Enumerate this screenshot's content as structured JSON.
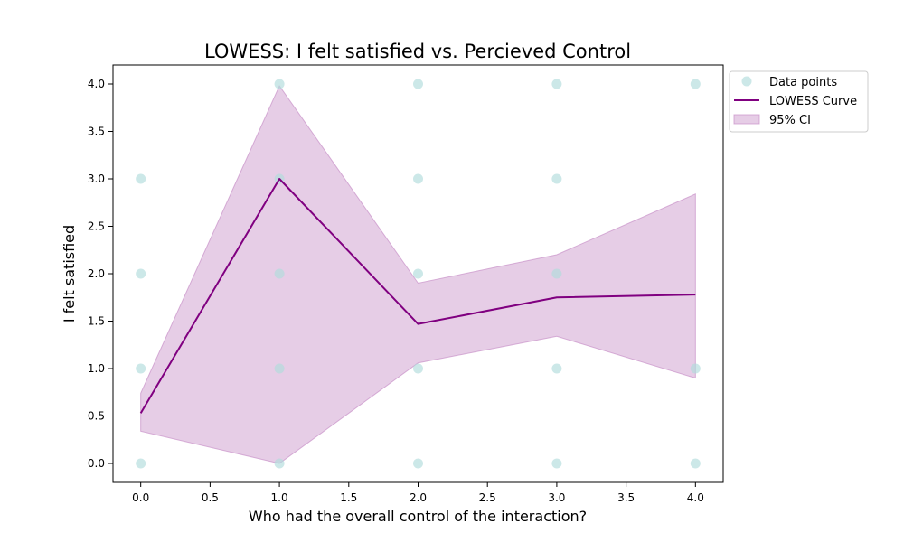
{
  "chart_data": {
    "type": "scatter",
    "title": "LOWESS: I felt satisfied vs. Percieved Control",
    "xlabel": "Who had the overall control of the interaction?",
    "ylabel": "I felt satisfied",
    "xlim": [
      -0.2,
      4.2
    ],
    "ylim": [
      -0.2,
      4.2
    ],
    "xticks": [
      0.0,
      0.5,
      1.0,
      1.5,
      2.0,
      2.5,
      3.0,
      3.5,
      4.0
    ],
    "yticks": [
      0.0,
      0.5,
      1.0,
      1.5,
      2.0,
      2.5,
      3.0,
      3.5,
      4.0
    ],
    "xtick_labels": [
      "0.0",
      "0.5",
      "1.0",
      "1.5",
      "2.0",
      "2.5",
      "3.0",
      "3.5",
      "4.0"
    ],
    "ytick_labels": [
      "0.0",
      "0.5",
      "1.0",
      "1.5",
      "2.0",
      "2.5",
      "3.0",
      "3.5",
      "4.0"
    ],
    "grid": false,
    "legend_position": "outside top-right",
    "legend": [
      "Data points",
      "LOWESS Curve",
      "95% CI"
    ],
    "series": [
      {
        "name": "Data points",
        "kind": "scatter",
        "color": "#b0dcdc",
        "points": [
          [
            0,
            0
          ],
          [
            0,
            1
          ],
          [
            0,
            2
          ],
          [
            0,
            3
          ],
          [
            1,
            0
          ],
          [
            1,
            1
          ],
          [
            1,
            2
          ],
          [
            1,
            3
          ],
          [
            1,
            4
          ],
          [
            2,
            0
          ],
          [
            2,
            1
          ],
          [
            2,
            2
          ],
          [
            2,
            3
          ],
          [
            2,
            4
          ],
          [
            3,
            0
          ],
          [
            3,
            1
          ],
          [
            3,
            2
          ],
          [
            3,
            3
          ],
          [
            3,
            4
          ],
          [
            4,
            0
          ],
          [
            4,
            1
          ],
          [
            4,
            4
          ]
        ]
      },
      {
        "name": "LOWESS Curve",
        "kind": "line",
        "color": "#800080",
        "x": [
          0,
          1,
          2,
          3,
          4
        ],
        "y": [
          0.53,
          3.0,
          1.47,
          1.75,
          1.78
        ]
      },
      {
        "name": "95% CI",
        "kind": "band",
        "color": "#c890c8",
        "x": [
          0,
          1,
          2,
          3,
          4
        ],
        "lower": [
          0.34,
          0.0,
          1.06,
          1.34,
          0.9
        ],
        "upper": [
          0.74,
          3.98,
          1.9,
          2.2,
          2.84
        ]
      }
    ]
  }
}
